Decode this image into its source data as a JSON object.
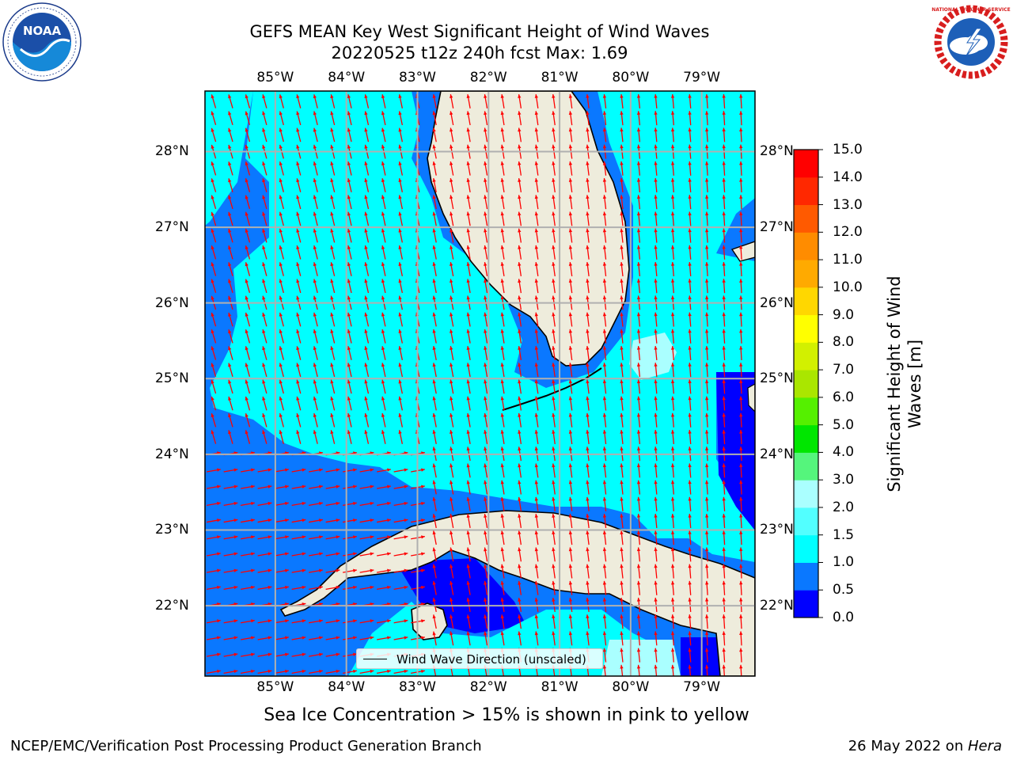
{
  "title": {
    "line1": "GEFS MEAN Key West Significant Height of Wind Waves",
    "line2": "20220525 t12z 240h fcst   Max: 1.69"
  },
  "logos": {
    "left": "noaa-logo",
    "right": "national-weather-service-logo",
    "left_text": "NOAA",
    "right_text": "NATIONAL WEATHER SERVICE"
  },
  "axes": {
    "lon_labels": [
      "85°W",
      "84°W",
      "83°W",
      "82°W",
      "81°W",
      "80°W",
      "79°W"
    ],
    "lat_labels": [
      "28°N",
      "27°N",
      "26°N",
      "25°N",
      "24°N",
      "23°N",
      "22°N"
    ],
    "lon_range": [
      -85.99,
      -78.25
    ],
    "lat_range": [
      21.07,
      28.8
    ],
    "grid": true
  },
  "colorbar": {
    "title": "Significant Height of Wind Waves [m]",
    "ticks": [
      "15.0",
      "14.0",
      "13.0",
      "12.0",
      "11.0",
      "10.0",
      "9.0",
      "8.0",
      "7.0",
      "6.0",
      "5.0",
      "4.0",
      "3.0",
      "2.0",
      "1.5",
      "1.0",
      "0.5",
      "0.0"
    ],
    "levels": [
      0.0,
      0.5,
      1.0,
      1.5,
      2.0,
      3.0,
      4.0,
      5.0,
      6.0,
      7.0,
      8.0,
      9.0,
      10.0,
      11.0,
      12.0,
      13.0,
      14.0,
      15.0
    ],
    "colors": [
      "#0000ff",
      "#0a78ff",
      "#00ffff",
      "#52ffff",
      "#aaffff",
      "#55f57c",
      "#00e600",
      "#55f000",
      "#aae600",
      "#d2f000",
      "#ffff00",
      "#ffd700",
      "#ffaa00",
      "#ff8c00",
      "#ff5a00",
      "#ff2800",
      "#ff0000"
    ]
  },
  "legend": {
    "label": "Wind Wave Direction (unscaled)"
  },
  "note": "Sea Ice Concentration > 15% is shown in pink to yellow",
  "footer": {
    "left": "NCEP/EMC/Verification Post Processing Product Generation Branch",
    "right_prefix": "26 May 2022 on ",
    "right_italic": "Hera"
  },
  "colors": {
    "land": "#eeecdc",
    "deep_blue": "#0000ff",
    "mid_blue": "#0a78ff",
    "cyan": "#00ffff",
    "pale_cyan": "#aaffff",
    "arrow": "#ff0000",
    "grid": "#b0b0b0"
  }
}
